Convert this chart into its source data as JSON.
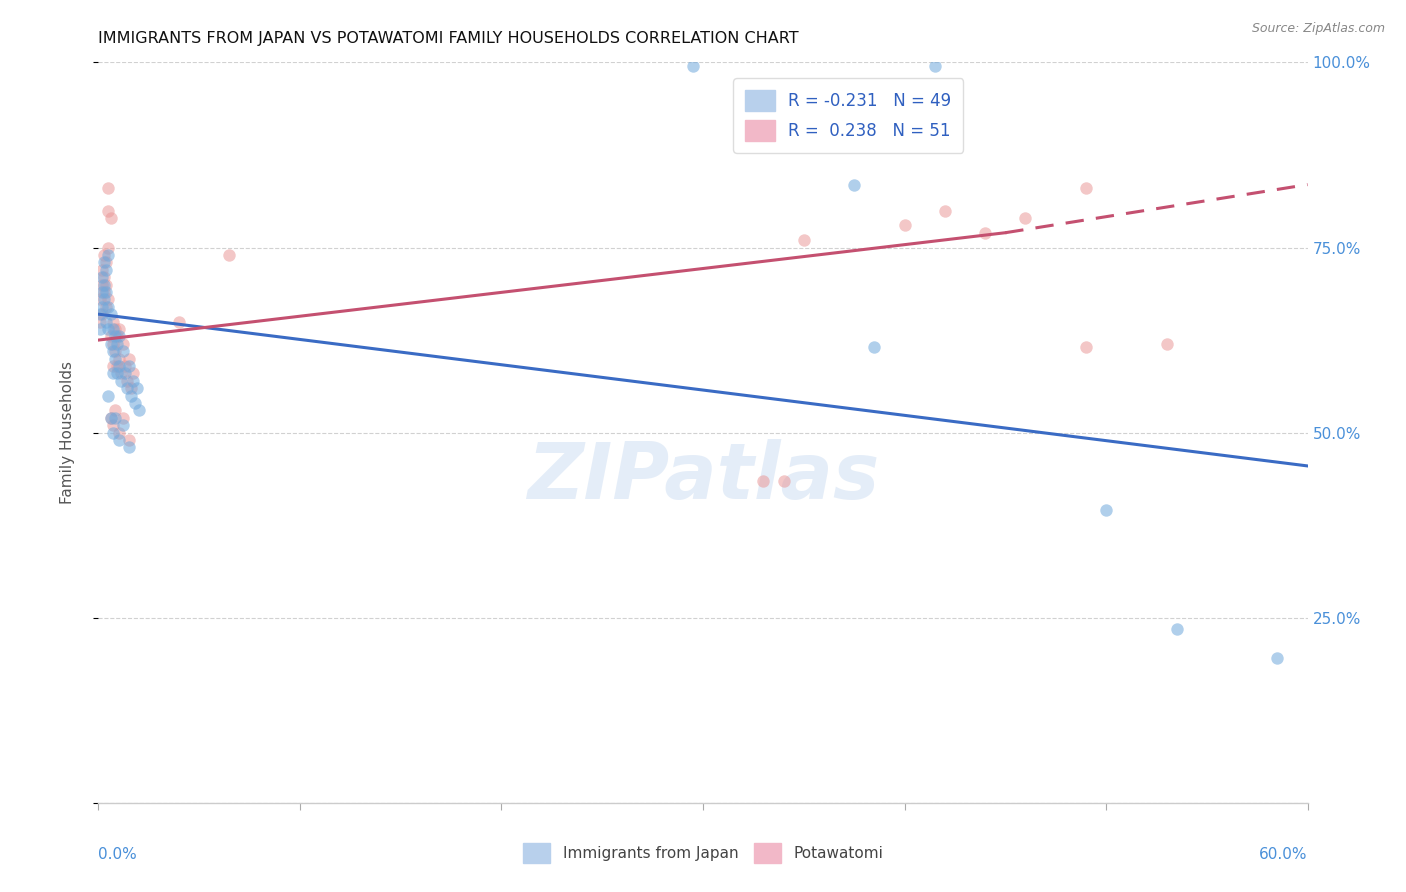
{
  "title": "IMMIGRANTS FROM JAPAN VS POTAWATOMI FAMILY HOUSEHOLDS CORRELATION CHART",
  "source": "Source: ZipAtlas.com",
  "ylabel": "Family Households",
  "right_yticklabels": [
    "",
    "25.0%",
    "50.0%",
    "75.0%",
    "100.0%"
  ],
  "legend_blue_label": "R = -0.231   N = 49",
  "legend_pink_label": "R =  0.238   N = 51",
  "legend_bottom_blue": "Immigrants from Japan",
  "legend_bottom_pink": "Potawatomi",
  "watermark": "ZIPatlas",
  "blue_color": "#6fa8dc",
  "pink_color": "#ea9999",
  "blue_line_color": "#3a6bc4",
  "pink_line_color": "#c45070",
  "blue_scatter": [
    [
      0.001,
      0.64
    ],
    [
      0.001,
      0.66
    ],
    [
      0.002,
      0.67
    ],
    [
      0.002,
      0.69
    ],
    [
      0.002,
      0.71
    ],
    [
      0.003,
      0.7
    ],
    [
      0.003,
      0.73
    ],
    [
      0.003,
      0.68
    ],
    [
      0.004,
      0.72
    ],
    [
      0.004,
      0.69
    ],
    [
      0.004,
      0.65
    ],
    [
      0.005,
      0.74
    ],
    [
      0.005,
      0.67
    ],
    [
      0.005,
      0.64
    ],
    [
      0.006,
      0.66
    ],
    [
      0.006,
      0.62
    ],
    [
      0.007,
      0.64
    ],
    [
      0.007,
      0.61
    ],
    [
      0.007,
      0.58
    ],
    [
      0.008,
      0.63
    ],
    [
      0.008,
      0.6
    ],
    [
      0.009,
      0.62
    ],
    [
      0.009,
      0.58
    ],
    [
      0.01,
      0.63
    ],
    [
      0.01,
      0.59
    ],
    [
      0.011,
      0.57
    ],
    [
      0.012,
      0.61
    ],
    [
      0.013,
      0.58
    ],
    [
      0.014,
      0.56
    ],
    [
      0.015,
      0.59
    ],
    [
      0.016,
      0.55
    ],
    [
      0.017,
      0.57
    ],
    [
      0.018,
      0.54
    ],
    [
      0.019,
      0.56
    ],
    [
      0.02,
      0.53
    ],
    [
      0.005,
      0.55
    ],
    [
      0.006,
      0.52
    ],
    [
      0.007,
      0.5
    ],
    [
      0.008,
      0.52
    ],
    [
      0.01,
      0.49
    ],
    [
      0.012,
      0.51
    ],
    [
      0.015,
      0.48
    ],
    [
      0.295,
      0.995
    ],
    [
      0.415,
      0.995
    ],
    [
      0.375,
      0.835
    ],
    [
      0.385,
      0.615
    ],
    [
      0.5,
      0.395
    ],
    [
      0.535,
      0.235
    ],
    [
      0.585,
      0.195
    ]
  ],
  "pink_scatter": [
    [
      0.001,
      0.65
    ],
    [
      0.001,
      0.68
    ],
    [
      0.002,
      0.66
    ],
    [
      0.002,
      0.7
    ],
    [
      0.002,
      0.72
    ],
    [
      0.003,
      0.71
    ],
    [
      0.003,
      0.74
    ],
    [
      0.003,
      0.69
    ],
    [
      0.004,
      0.73
    ],
    [
      0.004,
      0.7
    ],
    [
      0.004,
      0.67
    ],
    [
      0.005,
      0.75
    ],
    [
      0.005,
      0.68
    ],
    [
      0.005,
      0.8
    ],
    [
      0.005,
      0.83
    ],
    [
      0.006,
      0.79
    ],
    [
      0.006,
      0.63
    ],
    [
      0.007,
      0.65
    ],
    [
      0.007,
      0.62
    ],
    [
      0.007,
      0.59
    ],
    [
      0.008,
      0.64
    ],
    [
      0.008,
      0.61
    ],
    [
      0.009,
      0.63
    ],
    [
      0.009,
      0.59
    ],
    [
      0.01,
      0.64
    ],
    [
      0.01,
      0.6
    ],
    [
      0.011,
      0.58
    ],
    [
      0.012,
      0.62
    ],
    [
      0.013,
      0.59
    ],
    [
      0.014,
      0.57
    ],
    [
      0.015,
      0.6
    ],
    [
      0.016,
      0.56
    ],
    [
      0.017,
      0.58
    ],
    [
      0.006,
      0.52
    ],
    [
      0.007,
      0.51
    ],
    [
      0.008,
      0.53
    ],
    [
      0.01,
      0.5
    ],
    [
      0.012,
      0.52
    ],
    [
      0.015,
      0.49
    ],
    [
      0.04,
      0.65
    ],
    [
      0.065,
      0.74
    ],
    [
      0.35,
      0.76
    ],
    [
      0.4,
      0.78
    ],
    [
      0.42,
      0.8
    ],
    [
      0.46,
      0.79
    ],
    [
      0.33,
      0.435
    ],
    [
      0.34,
      0.435
    ],
    [
      0.44,
      0.77
    ],
    [
      0.49,
      0.83
    ],
    [
      0.53,
      0.62
    ],
    [
      0.49,
      0.615
    ]
  ],
  "blue_trend": [
    0.0,
    0.6,
    0.66,
    0.455
  ],
  "pink_trend_solid": [
    0.0,
    0.45,
    0.625,
    0.77
  ],
  "pink_trend_dash": [
    0.45,
    0.6,
    0.77,
    0.835
  ],
  "xlim": [
    0.0,
    0.6
  ],
  "ylim": [
    0.0,
    1.0
  ],
  "xticks": [
    0.0,
    0.1,
    0.2,
    0.3,
    0.4,
    0.5,
    0.6
  ],
  "yticks_right": [
    0.0,
    0.25,
    0.5,
    0.75,
    1.0
  ]
}
